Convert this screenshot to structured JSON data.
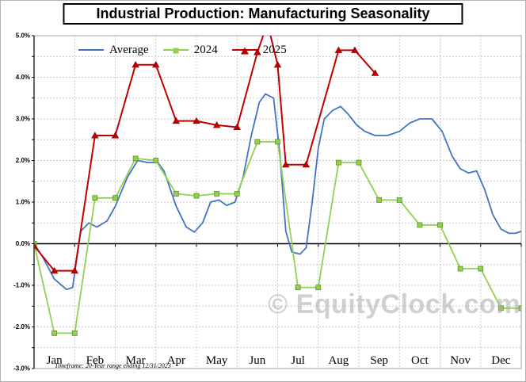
{
  "title": "Industrial Production: Manufacturing Seasonality",
  "footnote": "Timeframe: 20-Year range ending 12/31/2023",
  "watermark": "© EquityClock.com",
  "legend": [
    {
      "label": "Average",
      "color": "#4472c4",
      "marker": "none"
    },
    {
      "label": "2024",
      "color": "#92d050",
      "marker": "square"
    },
    {
      "label": "2025",
      "color": "#c00000",
      "marker": "triangle"
    }
  ],
  "chart_data": {
    "type": "line",
    "title": "Industrial Production: Manufacturing Seasonality",
    "x_unit": "month position (0 = start of Jan, 12 = end of Dec)",
    "months": [
      "Jan",
      "Feb",
      "Mar",
      "Apr",
      "May",
      "Jun",
      "Jul",
      "Aug",
      "Sep",
      "Oct",
      "Nov",
      "Dec"
    ],
    "ylim": [
      -3.0,
      5.0
    ],
    "grid_interval": 0.5,
    "legend_position": "top-left-inside",
    "yticks": [
      {
        "value": 5,
        "label": "5.0%"
      },
      {
        "value": 4,
        "label": "4.0%"
      },
      {
        "value": 3,
        "label": "3.0%"
      },
      {
        "value": 2,
        "label": "2.0%"
      },
      {
        "value": 1,
        "label": "1.0%"
      },
      {
        "value": 0,
        "label": "0.0%"
      },
      {
        "value": -1,
        "label": "-1.0%"
      },
      {
        "value": -2,
        "label": "-2.0%"
      },
      {
        "value": -3,
        "label": "-3.0%"
      }
    ],
    "series": [
      {
        "name": "Average",
        "color": "#4472c4",
        "marker": "none",
        "width": 1.8,
        "points": [
          [
            0,
            0
          ],
          [
            0.2,
            -0.3
          ],
          [
            0.5,
            -0.85
          ],
          [
            0.8,
            -1.1
          ],
          [
            0.95,
            -1.05
          ],
          [
            1.15,
            0.3
          ],
          [
            1.35,
            0.5
          ],
          [
            1.55,
            0.4
          ],
          [
            1.8,
            0.55
          ],
          [
            2.0,
            0.9
          ],
          [
            2.3,
            1.6
          ],
          [
            2.55,
            2.0
          ],
          [
            2.8,
            1.95
          ],
          [
            3.05,
            1.95
          ],
          [
            3.2,
            1.75
          ],
          [
            3.5,
            0.9
          ],
          [
            3.75,
            0.4
          ],
          [
            3.95,
            0.28
          ],
          [
            4.15,
            0.5
          ],
          [
            4.35,
            1.0
          ],
          [
            4.55,
            1.05
          ],
          [
            4.75,
            0.92
          ],
          [
            4.95,
            1.0
          ],
          [
            5.15,
            1.6
          ],
          [
            5.35,
            2.6
          ],
          [
            5.55,
            3.4
          ],
          [
            5.7,
            3.6
          ],
          [
            5.9,
            3.5
          ],
          [
            6.05,
            2.2
          ],
          [
            6.2,
            0.3
          ],
          [
            6.35,
            -0.2
          ],
          [
            6.55,
            -0.25
          ],
          [
            6.7,
            -0.1
          ],
          [
            6.85,
            1.0
          ],
          [
            7.0,
            2.3
          ],
          [
            7.15,
            3.0
          ],
          [
            7.35,
            3.2
          ],
          [
            7.55,
            3.3
          ],
          [
            7.75,
            3.1
          ],
          [
            7.95,
            2.85
          ],
          [
            8.15,
            2.7
          ],
          [
            8.4,
            2.6
          ],
          [
            8.7,
            2.6
          ],
          [
            9.0,
            2.7
          ],
          [
            9.25,
            2.9
          ],
          [
            9.5,
            3.0
          ],
          [
            9.8,
            3.0
          ],
          [
            10.05,
            2.7
          ],
          [
            10.3,
            2.1
          ],
          [
            10.5,
            1.8
          ],
          [
            10.7,
            1.7
          ],
          [
            10.9,
            1.75
          ],
          [
            11.1,
            1.3
          ],
          [
            11.3,
            0.7
          ],
          [
            11.5,
            0.35
          ],
          [
            11.7,
            0.25
          ],
          [
            11.85,
            0.25
          ],
          [
            12,
            0.3
          ]
        ]
      },
      {
        "name": "2024",
        "color": "#92d050",
        "edge": "#5b9220",
        "marker": "square",
        "width": 1.8,
        "points": [
          [
            0,
            0
          ],
          [
            0.5,
            -2.15
          ],
          [
            1.0,
            -2.15
          ],
          [
            1.5,
            1.1
          ],
          [
            2.0,
            1.1
          ],
          [
            2.5,
            2.05
          ],
          [
            3.0,
            2.0
          ],
          [
            3.5,
            1.2
          ],
          [
            4.0,
            1.15
          ],
          [
            4.5,
            1.2
          ],
          [
            5.0,
            1.2
          ],
          [
            5.5,
            2.45
          ],
          [
            6.0,
            2.45
          ],
          [
            6.5,
            -1.05
          ],
          [
            7.0,
            -1.05
          ],
          [
            7.5,
            1.95
          ],
          [
            8.0,
            1.95
          ],
          [
            8.5,
            1.05
          ],
          [
            9.0,
            1.05
          ],
          [
            9.5,
            0.45
          ],
          [
            10.0,
            0.45
          ],
          [
            10.5,
            -0.6
          ],
          [
            11.0,
            -0.6
          ],
          [
            11.5,
            -1.55
          ],
          [
            12.0,
            -1.55
          ]
        ]
      },
      {
        "name": "2025",
        "color": "#c00000",
        "edge": "#8e0000",
        "marker": "triangle",
        "width": 2.0,
        "points": [
          [
            0,
            -0.05
          ],
          [
            0.5,
            -0.65
          ],
          [
            1.0,
            -0.65
          ],
          [
            1.5,
            2.6
          ],
          [
            2.0,
            2.6
          ],
          [
            2.5,
            4.3
          ],
          [
            3.0,
            4.3
          ],
          [
            3.5,
            2.95
          ],
          [
            4.0,
            2.95
          ],
          [
            4.5,
            2.85
          ],
          [
            5.0,
            2.8
          ],
          [
            5.5,
            4.6
          ],
          [
            5.75,
            5.3
          ],
          [
            6.0,
            4.3
          ],
          [
            6.2,
            1.9
          ],
          [
            6.7,
            1.9
          ],
          [
            7.5,
            4.65
          ],
          [
            7.9,
            4.65
          ],
          [
            8.4,
            4.1
          ]
        ]
      }
    ]
  }
}
